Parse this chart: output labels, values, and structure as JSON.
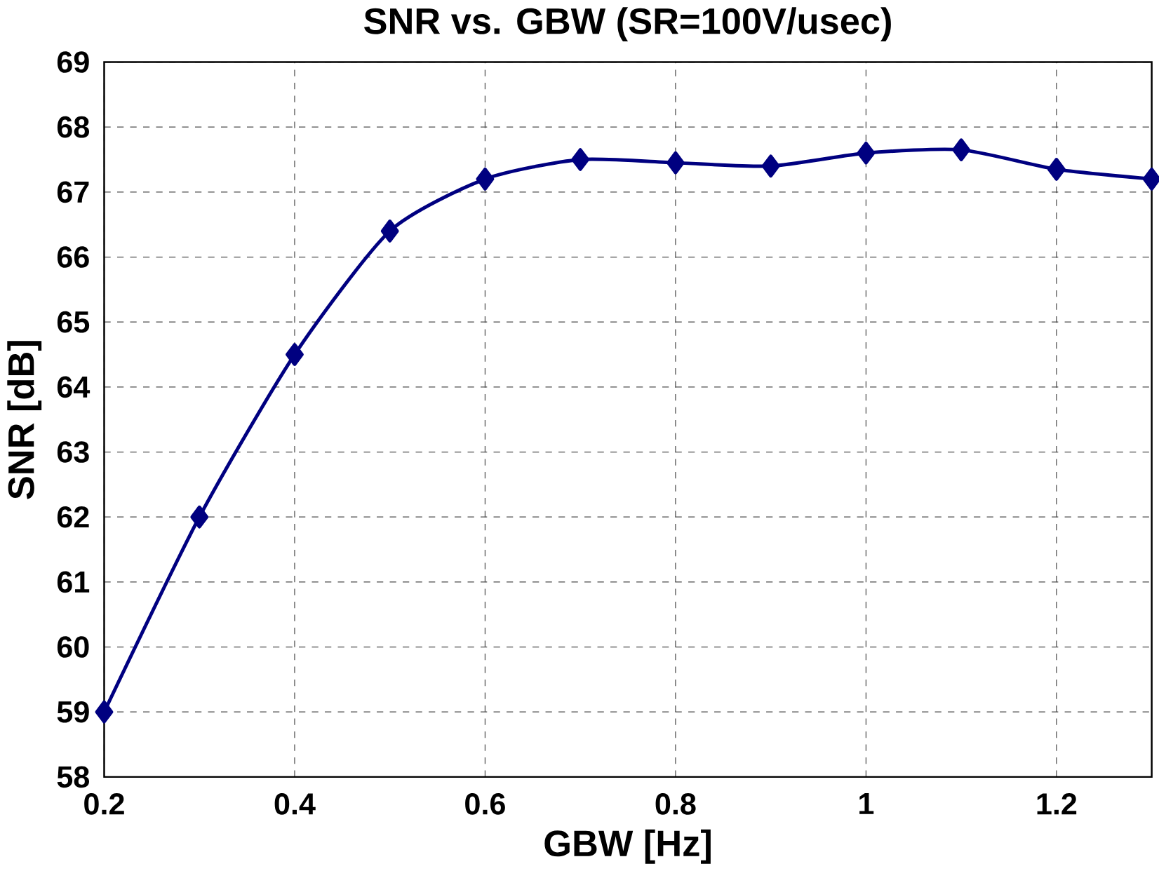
{
  "chart_data": {
    "type": "line",
    "title": "SNR vs. GBW (SR=100V/usec)",
    "xlabel": "GBW [Hz]",
    "ylabel": "SNR [dB]",
    "x": [
      0.2,
      0.3,
      0.4,
      0.5,
      0.6,
      0.7,
      0.8,
      0.9,
      1,
      1.1,
      1.2,
      1.3
    ],
    "series": [
      {
        "color": "#000080",
        "values": [
          59,
          62,
          64.5,
          66.4,
          67.2,
          67.5,
          67.45,
          67.4,
          67.6,
          67.65,
          67.35,
          67.2
        ]
      }
    ],
    "xlim": [
      0.2,
      1.3
    ],
    "xticks": [
      0.2,
      0.4,
      0.6,
      0.8,
      1,
      1.2
    ],
    "ylim": [
      58,
      69
    ],
    "yticks": [
      58,
      59,
      60,
      61,
      62,
      63,
      64,
      65,
      66,
      67,
      68,
      69
    ],
    "grid": true,
    "marker": "diamond",
    "line_style": "solid"
  }
}
